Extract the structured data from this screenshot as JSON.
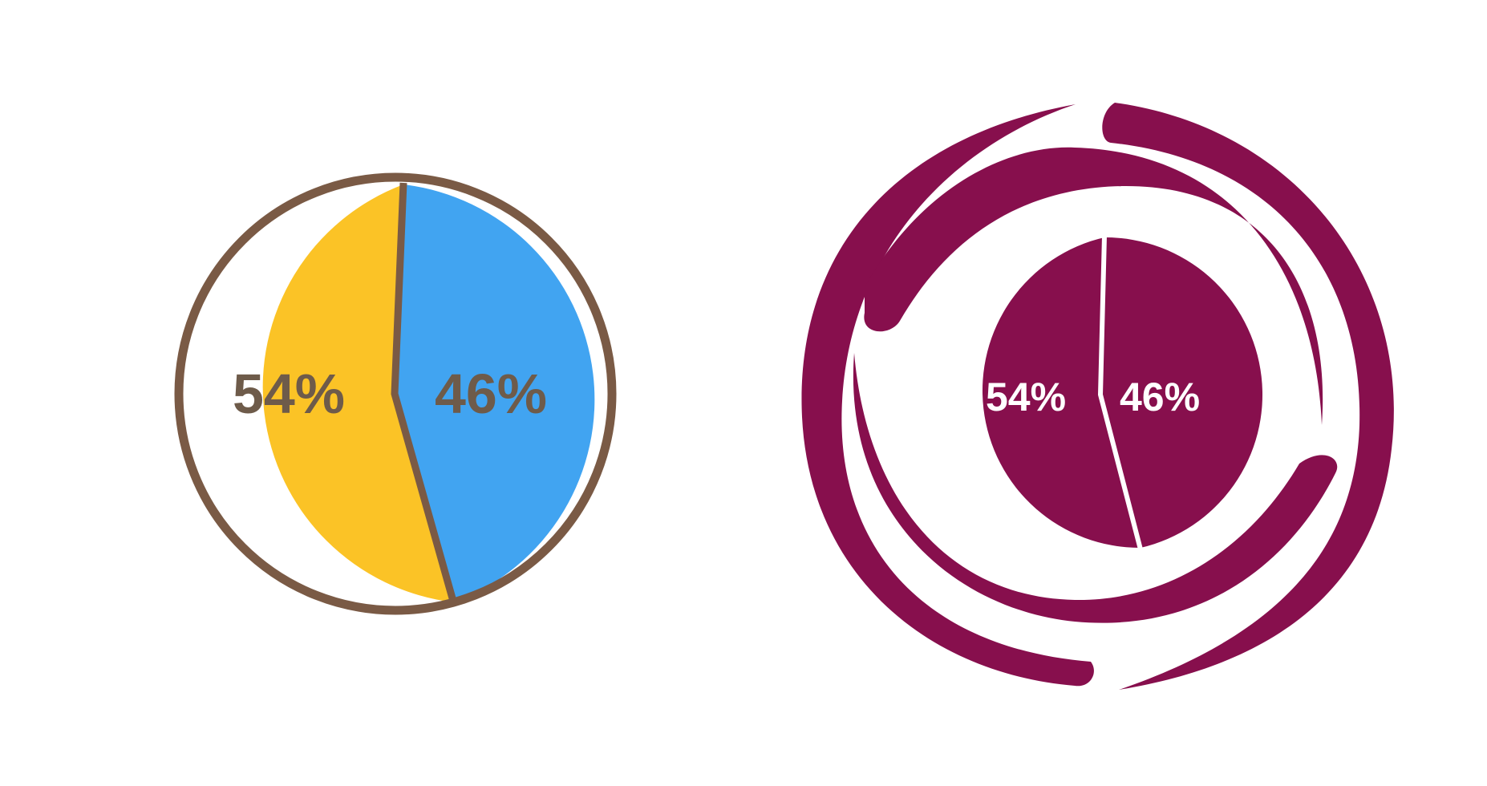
{
  "chart_data": [
    {
      "type": "pie",
      "slices": [
        {
          "label": "54%",
          "value": 54,
          "color": "#FBC326"
        },
        {
          "label": "46%",
          "value": 46,
          "color": "#41A4F1"
        }
      ],
      "outline_color": "#7A5A45",
      "label_color": "#6E5B4A",
      "label_accent_color": "#8DB84A"
    },
    {
      "type": "pie",
      "slices": [
        {
          "label": "54%",
          "value": 54,
          "color": "#870F4D"
        },
        {
          "label": "46%",
          "value": 46,
          "color": "#870F4D"
        }
      ],
      "separator_color": "#FFFFFF",
      "label_color": "#FFFFFF",
      "decorative_ring_color": "#870F4D"
    }
  ]
}
